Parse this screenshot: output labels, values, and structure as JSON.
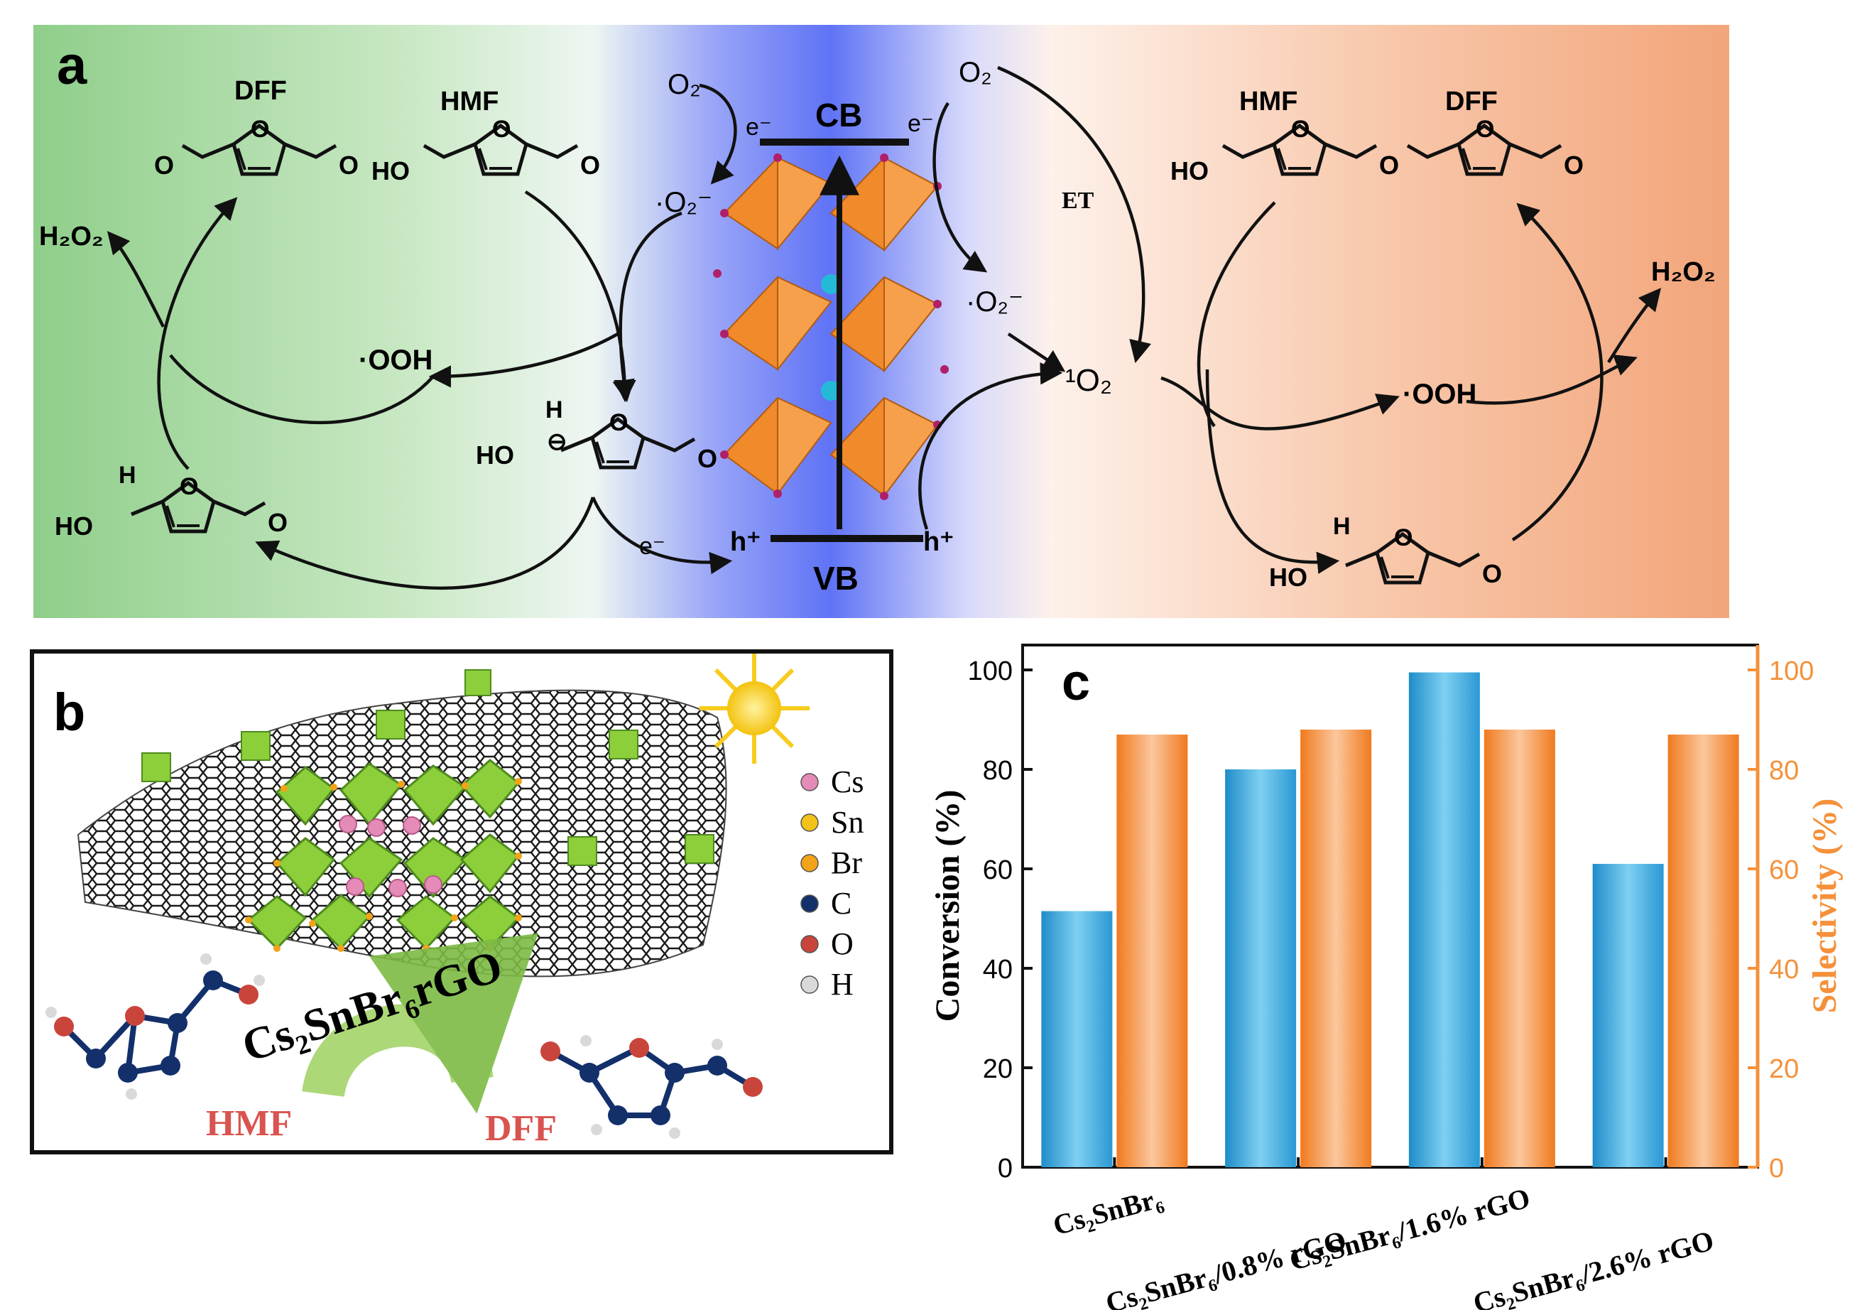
{
  "panel_a": {
    "letter": "a",
    "cb": "CB",
    "vb": "VB",
    "electron": "e⁻",
    "hole": "h⁺",
    "o2": "O₂",
    "superoxide": "·O₂⁻",
    "singlet_oxygen": "¹O₂",
    "hydroperoxyl": "·OOH",
    "h2o2": "H₂O₂",
    "et": "ET",
    "dff": "DFF",
    "hmf": "HMF",
    "ho": "HO",
    "h": "H",
    "aldehyde_o": "O",
    "ring_o": "O",
    "minus": "⊖",
    "colors": {
      "left_bg": "#8fce8a",
      "center_bg": "#5f73f5",
      "right_bg": "#f2a57a",
      "octahedron": "#f08a2a",
      "cs_atom": "#25b9d8"
    }
  },
  "panel_b": {
    "letter": "b",
    "legend": [
      {
        "label": "Cs",
        "color": "#e58bb8"
      },
      {
        "label": "Sn",
        "color": "#f2c21a"
      },
      {
        "label": "Br",
        "color": "#f2a31a"
      },
      {
        "label": "C",
        "color": "#13306b"
      },
      {
        "label": "O",
        "color": "#c9453c"
      },
      {
        "label": "H",
        "color": "#d9d9d9"
      }
    ],
    "catalyst": "Cs₂SnBr₆rGO",
    "hmf": "HMF",
    "dff": "DFF",
    "colors": {
      "octahedron": "#8ccf3a",
      "sun": "#f7cc1f",
      "label_red": "#d9534f"
    }
  },
  "chart_data": {
    "type": "bar",
    "panel_letter": "c",
    "categories": [
      "Cs₂SnBr₆",
      "Cs₂SnBr₆/0.8% rGO",
      "Cs₂SnBr₆/1.6% rGO",
      "Cs₂SnBr₆/2.6% rGO"
    ],
    "series": [
      {
        "name": "Conversion (%)",
        "axis": "left",
        "color": "#3aa7dc",
        "values": [
          51.5,
          80,
          99.5,
          61
        ]
      },
      {
        "name": "Selectivity (%)",
        "axis": "right",
        "color": "#f5913a",
        "values": [
          87,
          88,
          88,
          87
        ]
      }
    ],
    "ylabel": "Conversion (%)",
    "y2label": "Selectivity (%)",
    "ylim": [
      0,
      105
    ],
    "y2lim": [
      0,
      105
    ],
    "yticks": [
      0,
      20,
      40,
      60,
      80,
      100
    ],
    "y2ticks": [
      0,
      20,
      40,
      60,
      80,
      100
    ]
  }
}
